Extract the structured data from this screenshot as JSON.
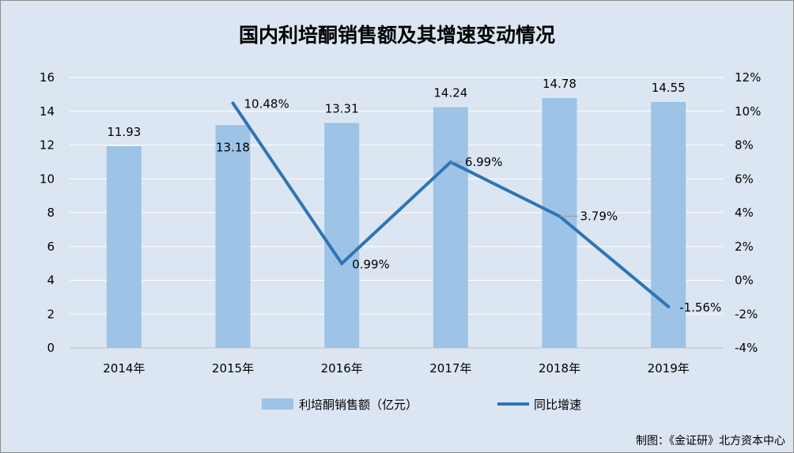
{
  "chart_data": {
    "type": "bar",
    "title": "国内利培酮销售额及其增速变动情况",
    "categories": [
      "2014年",
      "2015年",
      "2016年",
      "2017年",
      "2018年",
      "2019年"
    ],
    "series": [
      {
        "name": "利培酮销售额（亿元）",
        "type": "bar",
        "axis": "left",
        "values": [
          11.93,
          13.18,
          13.31,
          14.24,
          14.78,
          14.55
        ],
        "labels": [
          "11.93",
          "13.18",
          "13.31",
          "14.24",
          "14.78",
          "14.55"
        ],
        "color": "#9dc3e6"
      },
      {
        "name": "同比增速",
        "type": "line",
        "axis": "right",
        "values": [
          null,
          10.48,
          0.99,
          6.99,
          3.79,
          -1.56
        ],
        "labels": [
          "",
          "10.48%",
          "0.99%",
          "6.99%",
          "3.79%",
          "-1.56%"
        ],
        "color": "#2e75b6"
      }
    ],
    "y_left": {
      "min": 0,
      "max": 16,
      "ticks": [
        "0",
        "2",
        "4",
        "6",
        "8",
        "10",
        "12",
        "14",
        "16"
      ]
    },
    "y_right": {
      "min": -4,
      "max": 12,
      "ticks": [
        "-4%",
        "-2%",
        "0%",
        "2%",
        "4%",
        "6%",
        "8%",
        "10%",
        "12%"
      ]
    },
    "grid": true,
    "legend_position": "bottom"
  },
  "source": "制图：《金证研》北方资本中心",
  "colors": {
    "background": "#dce6f2",
    "grid": "#ffffff",
    "axis": "#bfbfbf"
  }
}
